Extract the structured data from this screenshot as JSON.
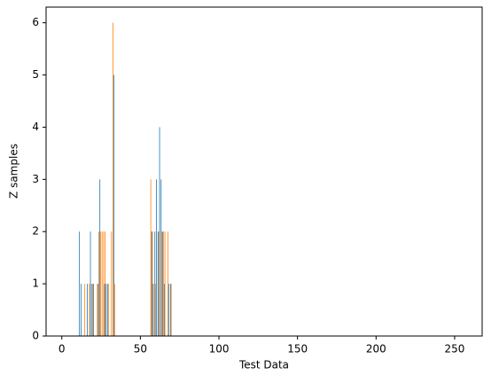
{
  "chart_data": {
    "type": "bar",
    "x_label": "Test Data",
    "y_label": "Z samples",
    "xlim": [
      -10,
      267.5
    ],
    "ylim": [
      0,
      6.3
    ],
    "xticks": [
      0,
      50,
      100,
      150,
      200,
      250
    ],
    "yticks": [
      0,
      1,
      2,
      3,
      4,
      5,
      6
    ],
    "bar_width": 0.4,
    "series": [
      {
        "color": "#1f77b4",
        "x": [
          11,
          12,
          16,
          18,
          19,
          20,
          23,
          24,
          27,
          28,
          29,
          33,
          57,
          58,
          59,
          60,
          61,
          62,
          63,
          64,
          65,
          68,
          69
        ],
        "values": [
          2,
          1,
          1,
          2,
          1,
          1,
          1,
          3,
          1,
          1,
          1,
          5,
          2,
          1,
          2,
          3,
          2,
          4,
          3,
          2,
          1,
          1,
          1
        ]
      },
      {
        "color": "#ff7f0e",
        "x": [
          14,
          17,
          19,
          22,
          23,
          24,
          25,
          26,
          27,
          29,
          31,
          32,
          33,
          56,
          57,
          59,
          61,
          63,
          64,
          65,
          67,
          69
        ],
        "values": [
          1,
          1,
          1,
          1,
          2,
          2,
          2,
          2,
          2,
          1,
          2,
          6,
          1,
          3,
          2,
          1,
          2,
          2,
          2,
          2,
          2,
          1
        ]
      }
    ]
  }
}
